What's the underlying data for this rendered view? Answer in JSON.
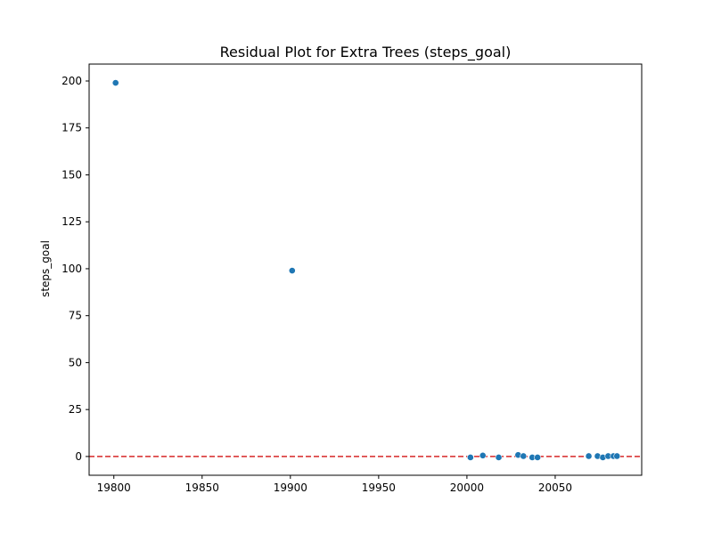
{
  "chart_data": {
    "type": "scatter",
    "title": "Residual Plot for Extra Trees (steps_goal)",
    "xlabel": "",
    "ylabel": "steps_goal",
    "xlim": [
      19786,
      20099
    ],
    "ylim": [
      -10,
      209
    ],
    "xticks": [
      19800,
      19850,
      19900,
      19950,
      20000,
      20050
    ],
    "yticks": [
      0,
      25,
      50,
      75,
      100,
      125,
      150,
      175,
      200
    ],
    "grid": false,
    "reference_line": {
      "y": 0,
      "style": "dashed",
      "color": "#d62728"
    },
    "series": [
      {
        "color": "#1f77b4",
        "points": [
          {
            "x": 19801,
            "y": 199
          },
          {
            "x": 19901,
            "y": 99
          },
          {
            "x": 20002,
            "y": -0.5
          },
          {
            "x": 20009,
            "y": 0.5
          },
          {
            "x": 20018,
            "y": -0.5
          },
          {
            "x": 20029,
            "y": 0.8
          },
          {
            "x": 20032,
            "y": 0.2
          },
          {
            "x": 20037,
            "y": -0.5
          },
          {
            "x": 20040,
            "y": -0.5
          },
          {
            "x": 20069,
            "y": 0.2
          },
          {
            "x": 20074,
            "y": 0.2
          },
          {
            "x": 20077,
            "y": -0.5
          },
          {
            "x": 20080,
            "y": 0.2
          },
          {
            "x": 20083,
            "y": 0.2
          },
          {
            "x": 20085,
            "y": 0.2
          }
        ]
      }
    ]
  }
}
